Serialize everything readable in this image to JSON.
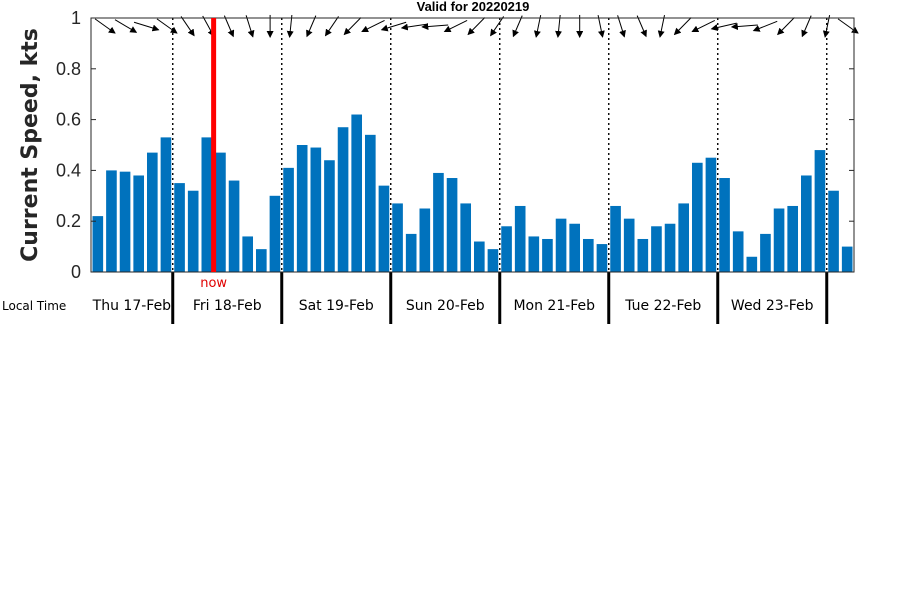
{
  "chart_data": {
    "type": "bar",
    "title": "Valid for 20220219",
    "ylabel": "Current Speed, kts",
    "ylim": [
      0,
      1
    ],
    "yticks": [
      "0",
      "0.2",
      "0.4",
      "0.6",
      "0.8",
      "1"
    ],
    "time_label": "Local Time",
    "now_label": "now",
    "bar_color": "#0072bd",
    "now_color": "#ff0000",
    "days": [
      "Thu 17-Feb",
      "Fri 18-Feb",
      "Sat 19-Feb",
      "Sun 20-Feb",
      "Mon 21-Feb",
      "Tue 22-Feb",
      "Wed 23-Feb"
    ],
    "values": [
      0.22,
      0.4,
      0.395,
      0.38,
      0.47,
      0.53,
      0.35,
      0.32,
      0.53,
      0.47,
      0.36,
      0.14,
      0.09,
      0.3,
      0.41,
      0.5,
      0.49,
      0.44,
      0.57,
      0.62,
      0.54,
      0.34,
      0.27,
      0.15,
      0.25,
      0.39,
      0.37,
      0.27,
      0.12,
      0.09,
      0.18,
      0.26,
      0.14,
      0.13,
      0.21,
      0.19,
      0.13,
      0.11,
      0.26,
      0.21,
      0.13,
      0.18,
      0.19,
      0.27,
      0.43,
      0.45,
      0.37,
      0.16,
      0.06,
      0.15,
      0.25,
      0.26,
      0.38,
      0.48,
      0.32,
      0.1
    ]
  }
}
